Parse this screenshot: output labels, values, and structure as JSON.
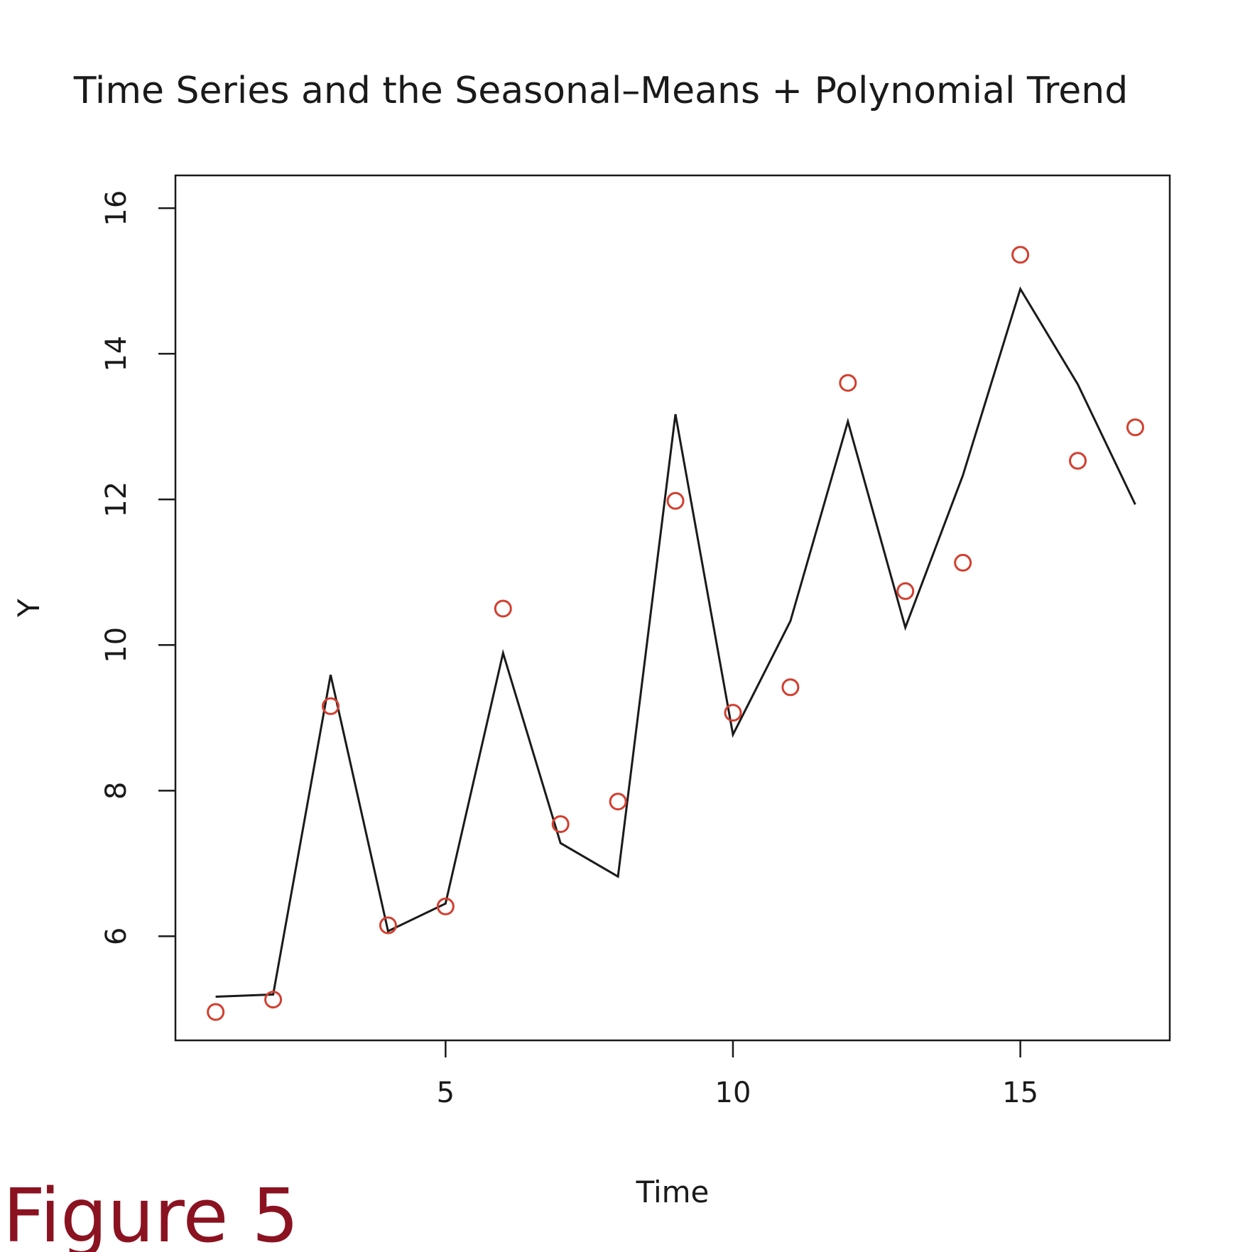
{
  "figure_label": "Figure 5",
  "colors": {
    "line": "#1a1a1a",
    "points": "#d23f2f",
    "figure_label": "#8b1220",
    "axes": "#1a1a1a"
  },
  "chart_data": {
    "type": "line",
    "title": "Time Series and the Seasonal–Means + Polynomial Trend",
    "xlabel": "Time",
    "ylabel": "Y",
    "xlim": [
      0.3,
      17.6
    ],
    "ylim": [
      4.57,
      16.45
    ],
    "xticks": [
      5,
      10,
      15
    ],
    "yticks": [
      6,
      8,
      10,
      12,
      14,
      16
    ],
    "grid": false,
    "legend": "none",
    "series": [
      {
        "style": "line",
        "x": [
          1,
          2,
          3,
          4,
          5,
          6,
          7,
          8,
          9,
          10,
          11,
          12,
          13,
          14,
          15,
          16,
          17
        ],
        "values": [
          5.17,
          5.2,
          9.59,
          6.07,
          6.45,
          9.89,
          7.28,
          6.82,
          13.17,
          8.77,
          10.33,
          13.07,
          10.24,
          12.33,
          14.89,
          13.58,
          11.93
        ]
      },
      {
        "style": "points",
        "marker": "open-circle",
        "x": [
          1,
          2,
          3,
          4,
          5,
          6,
          7,
          8,
          9,
          10,
          11,
          12,
          13,
          14,
          15,
          16,
          17
        ],
        "values": [
          4.96,
          5.13,
          9.16,
          6.15,
          6.41,
          10.5,
          7.54,
          7.85,
          11.98,
          9.07,
          9.42,
          13.6,
          10.74,
          11.13,
          15.36,
          12.53,
          12.99
        ]
      }
    ]
  }
}
